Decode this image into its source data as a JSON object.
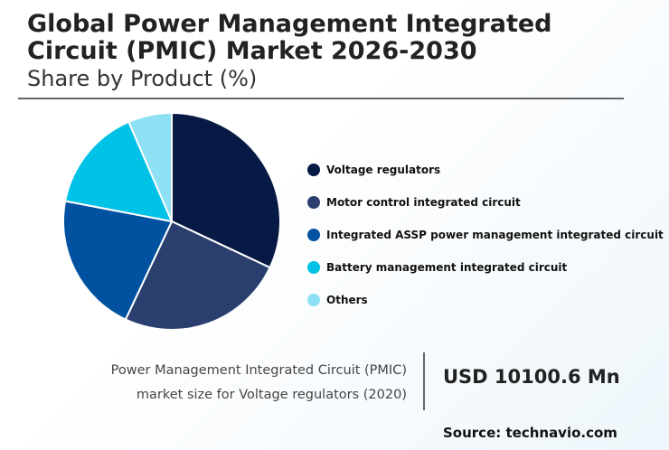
{
  "header": {
    "title_line1": "Global Power Management Integrated",
    "title_line2": "Circuit (PMIC) Market 2026-2030",
    "subtitle": "Share by Product (%)"
  },
  "chart_data": {
    "type": "pie",
    "title": "Global Power Management Integrated Circuit (PMIC) Market 2026-2030",
    "subtitle": "Share by Product (%)",
    "legend_position": "right",
    "start_angle_deg": 0,
    "direction": "clockwise",
    "slices": [
      {
        "label": "Voltage regulators",
        "value": 32,
        "color": "#061a45"
      },
      {
        "label": "Motor control integrated circuit",
        "value": 25,
        "color": "#2b3f6f"
      },
      {
        "label": "Integrated ASSP power management integrated circuit",
        "value": 21,
        "color": "#0052a0"
      },
      {
        "label": "Battery management integrated circuit",
        "value": 15.5,
        "color": "#00c2e6"
      },
      {
        "label": "Others",
        "value": 6.5,
        "color": "#8ee0f5"
      }
    ]
  },
  "stat": {
    "label_line1": "Power Management Integrated Circuit (PMIC)",
    "label_line2": "market size for Voltage regulators (2020)",
    "value": "USD 10100.6 Mn"
  },
  "source": "Source: technavio.com"
}
